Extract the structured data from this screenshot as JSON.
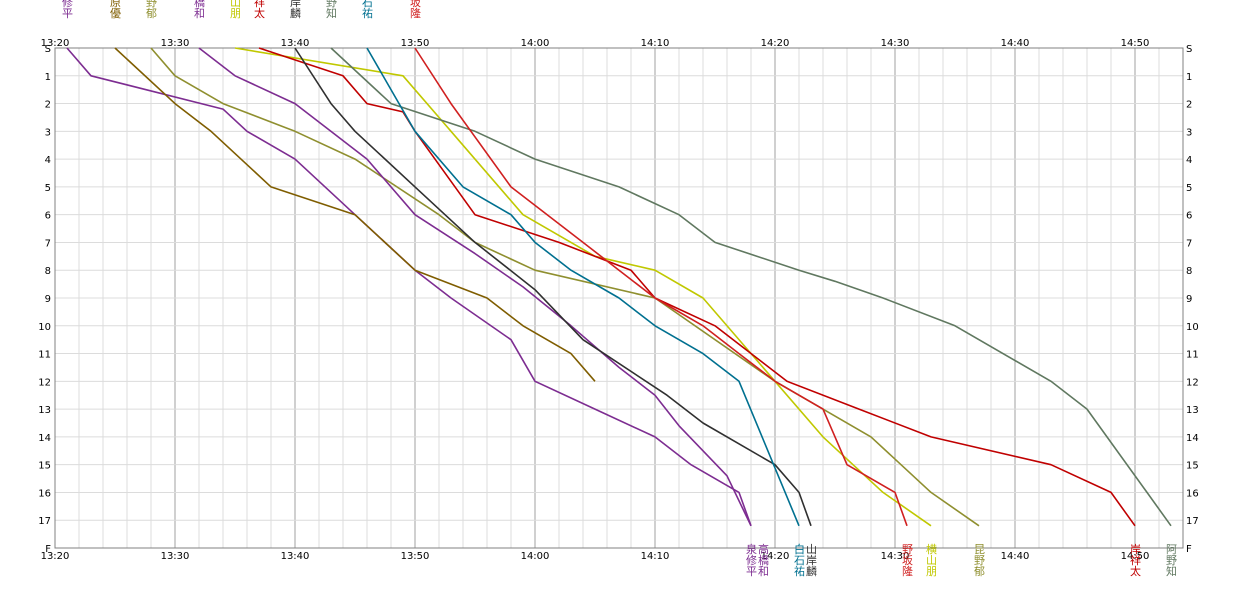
{
  "chart_data": {
    "type": "line",
    "x_ticks": [
      "13:20",
      "13:30",
      "13:40",
      "13:50",
      "14:00",
      "14:10",
      "14:20",
      "14:30",
      "14:40",
      "14:50"
    ],
    "x_range": [
      "13:20",
      "14:54"
    ],
    "y_ticks": [
      "S",
      "1",
      "2",
      "3",
      "4",
      "5",
      "6",
      "7",
      "8",
      "9",
      "10",
      "11",
      "12",
      "13",
      "14",
      "15",
      "16",
      "17",
      "F"
    ],
    "grid": true,
    "series": [
      {
        "name": "泉修平",
        "color": "#7d2d91",
        "label_top": true,
        "label_bottom": true,
        "x": [
          "13:21",
          "13:23",
          "13:34",
          "13:36",
          "13:40",
          "13:45",
          "13:50",
          "13:53",
          "13:58",
          "14:00",
          "14:05",
          "14:10",
          "14:13",
          "14:17",
          "14:18"
        ],
        "y": [
          0,
          1,
          2.2,
          3,
          4,
          6,
          8,
          9,
          10.5,
          12,
          13,
          14,
          15,
          16,
          17.2
        ]
      },
      {
        "name": "小原優",
        "color": "#7f5d00",
        "label_top": true,
        "label_bottom": false,
        "x": [
          "13:25",
          "13:30",
          "13:33",
          "13:38",
          "13:45",
          "13:50",
          "13:56",
          "13:59",
          "14:03",
          "14:05"
        ],
        "y": [
          0,
          2,
          3,
          5,
          6,
          8,
          9,
          10,
          11,
          12
        ]
      },
      {
        "name": "昆野郁",
        "color": "#8f8f2f",
        "label_top": true,
        "label_bottom": true,
        "x": [
          "13:28",
          "13:30",
          "13:34",
          "13:40",
          "13:45",
          "13:52",
          "13:55",
          "14:00",
          "14:10",
          "14:20",
          "14:28",
          "14:33",
          "14:37"
        ],
        "y": [
          0,
          1,
          2,
          3,
          4,
          6,
          7,
          8,
          9,
          12,
          14,
          16,
          17.2
        ]
      },
      {
        "name": "高橋和",
        "color": "#7d2d91",
        "label_top": true,
        "label_bottom": true,
        "x": [
          "13:32",
          "13:35",
          "13:40",
          "13:46",
          "13:50",
          "13:55",
          "13:59",
          "14:03",
          "14:07",
          "14:10",
          "14:12",
          "14:16",
          "14:18"
        ],
        "y": [
          0,
          1,
          2,
          4,
          6,
          7.4,
          8.6,
          10,
          11.5,
          12.5,
          13.6,
          15.4,
          17.2
        ]
      },
      {
        "name": "横山朋",
        "color": "#c0c800",
        "label_top": true,
        "label_bottom": true,
        "x": [
          "13:35",
          "13:49",
          "13:53",
          "13:59",
          "14:05",
          "14:10",
          "14:14",
          "14:20",
          "14:24",
          "14:29",
          "14:33"
        ],
        "y": [
          0,
          1,
          3,
          6,
          7.5,
          8,
          9,
          12,
          14,
          16,
          17.2
        ]
      },
      {
        "name": "岸祥太",
        "color": "#c00000",
        "label_top": true,
        "label_bottom": true,
        "x": [
          "13:37",
          "13:44",
          "13:46",
          "13:49",
          "13:50",
          "13:55",
          "14:02",
          "14:08",
          "14:10",
          "14:15",
          "14:21",
          "14:27",
          "14:33",
          "14:43",
          "14:48",
          "14:50"
        ],
        "y": [
          0,
          1,
          2,
          2.3,
          3,
          6,
          7,
          8,
          9,
          10,
          12,
          13,
          14,
          15,
          16,
          17.2
        ]
      },
      {
        "name": "山岸麟",
        "color": "#303030",
        "label_top": true,
        "label_bottom": true,
        "x": [
          "13:40",
          "13:43",
          "13:45",
          "13:50",
          "13:55",
          "14:00",
          "14:04",
          "14:11",
          "14:14",
          "14:20",
          "14:22",
          "14:23"
        ],
        "y": [
          0,
          2,
          3,
          5,
          7,
          8.7,
          10.5,
          12.5,
          13.5,
          15,
          16,
          17.2
        ]
      },
      {
        "name": "阿野知",
        "color": "#607860",
        "label_top": true,
        "label_bottom": true,
        "x": [
          "13:43",
          "13:48",
          "13:55",
          "14:00",
          "14:07",
          "14:12",
          "14:15",
          "14:22",
          "14:25",
          "14:29",
          "14:35",
          "14:43",
          "14:46",
          "14:51",
          "14:53"
        ],
        "y": [
          0,
          2,
          3,
          4,
          5,
          6,
          7,
          8,
          8.4,
          9,
          10,
          12,
          13,
          16,
          17.2
        ]
      },
      {
        "name": "白石祐",
        "color": "#007090",
        "label_top": true,
        "label_bottom": true,
        "x": [
          "13:46",
          "13:50",
          "13:54",
          "13:58",
          "14:00",
          "14:03",
          "14:07",
          "14:10",
          "14:14",
          "14:17",
          "14:22"
        ],
        "y": [
          0,
          3,
          5,
          6,
          7,
          8,
          9,
          10,
          11,
          12,
          17.2
        ]
      },
      {
        "name": "野坂隆",
        "color": "#d02020",
        "label_top": true,
        "label_bottom": true,
        "x": [
          "13:50",
          "13:53",
          "13:58",
          "14:04",
          "14:07",
          "14:10",
          "14:14",
          "14:17",
          "14:20",
          "14:24",
          "14:26",
          "14:30",
          "14:31"
        ],
        "y": [
          0,
          2,
          5,
          7,
          8,
          9,
          10,
          11,
          12,
          13,
          15,
          16,
          17.2
        ]
      }
    ]
  }
}
